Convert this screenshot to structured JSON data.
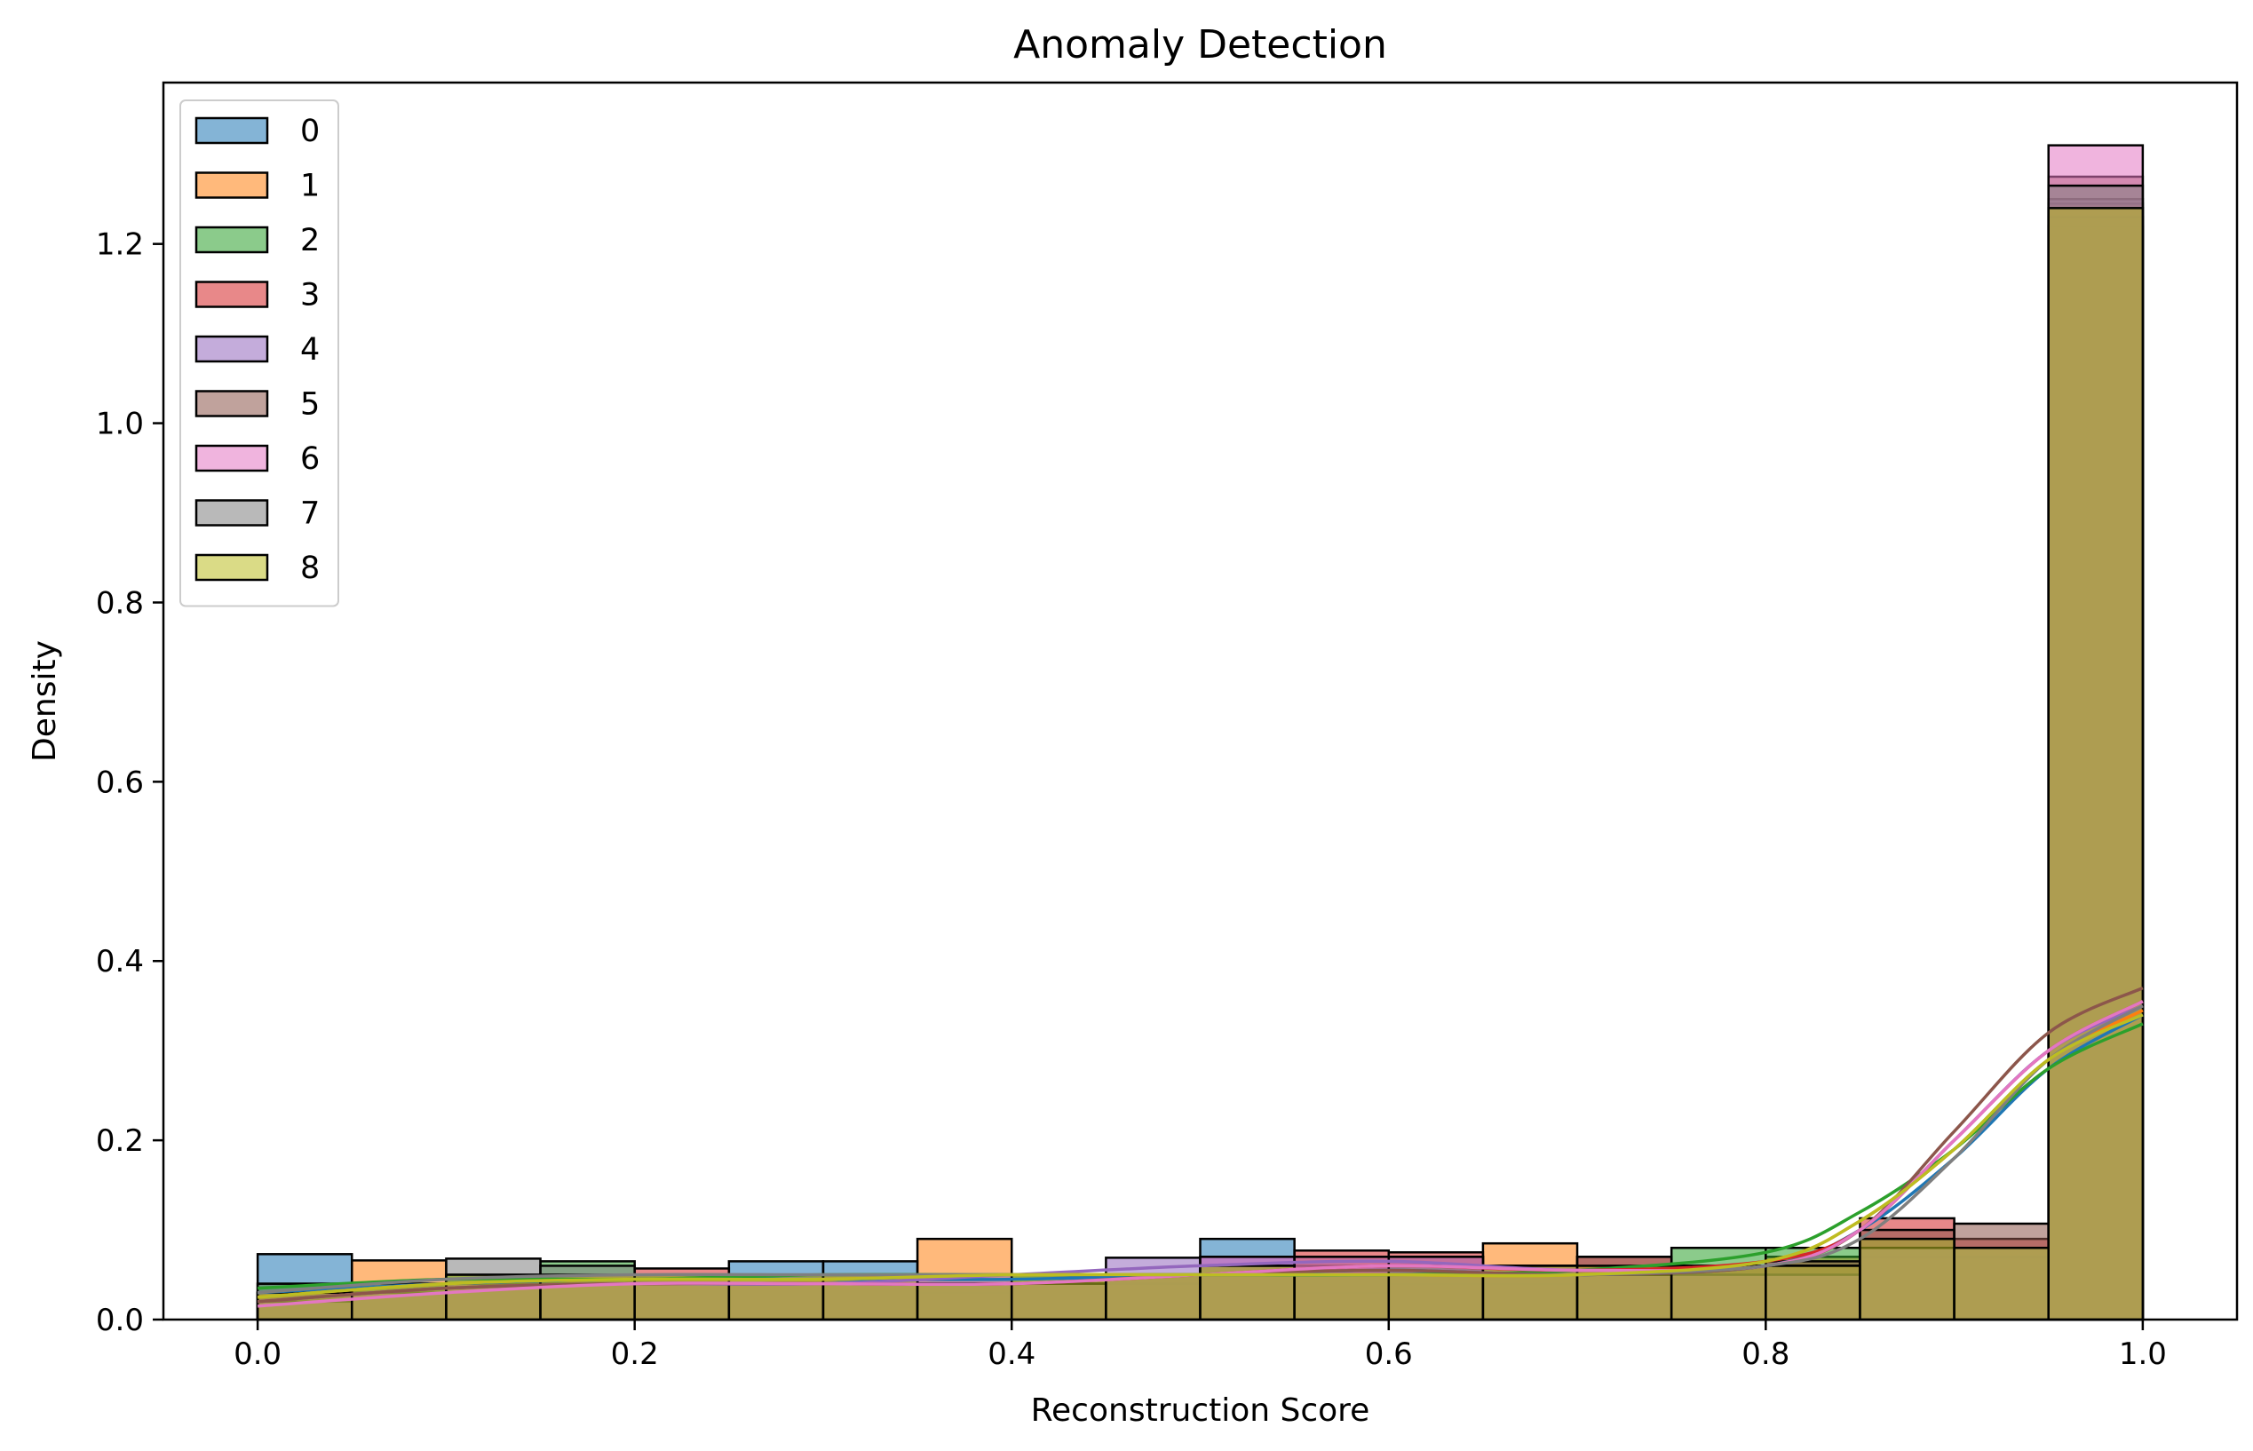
{
  "chart_data": {
    "type": "histogram",
    "title": "Anomaly Detection",
    "xlabel": "Reconstruction Score",
    "ylabel": "Density",
    "xlim": [
      -0.05,
      1.05
    ],
    "ylim": [
      0,
      1.38
    ],
    "xticks": [
      "0.0",
      "0.2",
      "0.4",
      "0.6",
      "0.8",
      "1.0"
    ],
    "xtick_values": [
      0.0,
      0.2,
      0.4,
      0.6,
      0.8,
      1.0
    ],
    "yticks": [
      "0.0",
      "0.2",
      "0.4",
      "0.6",
      "0.8",
      "1.0",
      "1.2"
    ],
    "ytick_values": [
      0.0,
      0.2,
      0.4,
      0.6,
      0.8,
      1.0,
      1.2
    ],
    "grid": false,
    "legend_position": "upper-left",
    "bin_edges": [
      0.0,
      0.05,
      0.1,
      0.15,
      0.2,
      0.25,
      0.3,
      0.35,
      0.4,
      0.45,
      0.5,
      0.55,
      0.6,
      0.65,
      0.7,
      0.75,
      0.8,
      0.85,
      0.9,
      0.95,
      1.0
    ],
    "kde_x": [
      0.0,
      0.1,
      0.2,
      0.3,
      0.4,
      0.5,
      0.6,
      0.7,
      0.8,
      0.85,
      0.9,
      0.95,
      1.0
    ],
    "series": [
      {
        "name": "0",
        "color": "#1f77b4",
        "density": [
          0.073,
          0.04,
          0.05,
          0.045,
          0.05,
          0.065,
          0.065,
          0.03,
          0.04,
          0.04,
          0.09,
          0.03,
          0.04,
          0.04,
          0.03,
          0.05,
          0.06,
          0.09,
          0.07,
          1.22
        ],
        "kde": [
          0.03,
          0.04,
          0.045,
          0.045,
          0.045,
          0.05,
          0.055,
          0.05,
          0.06,
          0.1,
          0.18,
          0.28,
          0.34
        ]
      },
      {
        "name": "1",
        "color": "#ff7f0e",
        "density": [
          0.03,
          0.066,
          0.04,
          0.04,
          0.05,
          0.04,
          0.05,
          0.09,
          0.05,
          0.04,
          0.05,
          0.05,
          0.05,
          0.085,
          0.05,
          0.06,
          0.07,
          0.07,
          0.08,
          1.245
        ],
        "kde": [
          0.025,
          0.04,
          0.045,
          0.045,
          0.05,
          0.05,
          0.05,
          0.05,
          0.065,
          0.11,
          0.19,
          0.29,
          0.345
        ]
      },
      {
        "name": "2",
        "color": "#2ca02c",
        "density": [
          0.04,
          0.04,
          0.05,
          0.065,
          0.05,
          0.05,
          0.05,
          0.04,
          0.05,
          0.05,
          0.06,
          0.05,
          0.05,
          0.05,
          0.06,
          0.08,
          0.08,
          0.08,
          0.07,
          1.23
        ],
        "kde": [
          0.035,
          0.045,
          0.045,
          0.05,
          0.05,
          0.05,
          0.05,
          0.055,
          0.075,
          0.12,
          0.19,
          0.28,
          0.33
        ]
      },
      {
        "name": "3",
        "color": "#d62728",
        "density": [
          0.03,
          0.03,
          0.04,
          0.05,
          0.057,
          0.05,
          0.04,
          0.04,
          0.04,
          0.05,
          0.06,
          0.077,
          0.075,
          0.06,
          0.07,
          0.06,
          0.06,
          0.113,
          0.09,
          1.24
        ],
        "kde": [
          0.02,
          0.035,
          0.04,
          0.04,
          0.04,
          0.05,
          0.06,
          0.055,
          0.065,
          0.1,
          0.2,
          0.3,
          0.355
        ]
      },
      {
        "name": "4",
        "color": "#9467bd",
        "density": [
          0.03,
          0.03,
          0.04,
          0.04,
          0.05,
          0.05,
          0.05,
          0.05,
          0.04,
          0.069,
          0.07,
          0.06,
          0.07,
          0.06,
          0.05,
          0.05,
          0.05,
          0.09,
          0.08,
          1.25
        ],
        "kde": [
          0.02,
          0.035,
          0.04,
          0.04,
          0.05,
          0.06,
          0.065,
          0.055,
          0.06,
          0.1,
          0.2,
          0.3,
          0.35
        ]
      },
      {
        "name": "5",
        "color": "#8c564b",
        "density": [
          0.03,
          0.03,
          0.04,
          0.04,
          0.05,
          0.05,
          0.05,
          0.04,
          0.04,
          0.05,
          0.06,
          0.07,
          0.07,
          0.06,
          0.07,
          0.06,
          0.065,
          0.1,
          0.107,
          1.275
        ],
        "kde": [
          0.02,
          0.035,
          0.04,
          0.04,
          0.04,
          0.05,
          0.055,
          0.05,
          0.06,
          0.1,
          0.21,
          0.32,
          0.37
        ]
      },
      {
        "name": "6",
        "color": "#e377c2",
        "density": [
          0.02,
          0.03,
          0.04,
          0.04,
          0.04,
          0.05,
          0.05,
          0.04,
          0.04,
          0.05,
          0.07,
          0.07,
          0.07,
          0.06,
          0.05,
          0.05,
          0.05,
          0.08,
          0.08,
          1.31
        ],
        "kde": [
          0.015,
          0.03,
          0.04,
          0.04,
          0.04,
          0.05,
          0.06,
          0.055,
          0.06,
          0.1,
          0.2,
          0.3,
          0.355
        ]
      },
      {
        "name": "7",
        "color": "#7f7f7f",
        "density": [
          0.04,
          0.04,
          0.068,
          0.06,
          0.05,
          0.05,
          0.05,
          0.04,
          0.04,
          0.05,
          0.06,
          0.05,
          0.06,
          0.06,
          0.05,
          0.06,
          0.06,
          0.08,
          0.08,
          1.265
        ],
        "kde": [
          0.03,
          0.045,
          0.05,
          0.05,
          0.05,
          0.05,
          0.05,
          0.05,
          0.06,
          0.09,
          0.18,
          0.29,
          0.35
        ]
      },
      {
        "name": "8",
        "color": "#bcbd22",
        "density": [
          0.03,
          0.04,
          0.05,
          0.05,
          0.05,
          0.05,
          0.05,
          0.04,
          0.05,
          0.05,
          0.06,
          0.05,
          0.05,
          0.06,
          0.06,
          0.06,
          0.06,
          0.09,
          0.08,
          1.24
        ],
        "kde": [
          0.025,
          0.04,
          0.045,
          0.045,
          0.05,
          0.05,
          0.05,
          0.05,
          0.065,
          0.11,
          0.19,
          0.29,
          0.34
        ]
      }
    ]
  }
}
